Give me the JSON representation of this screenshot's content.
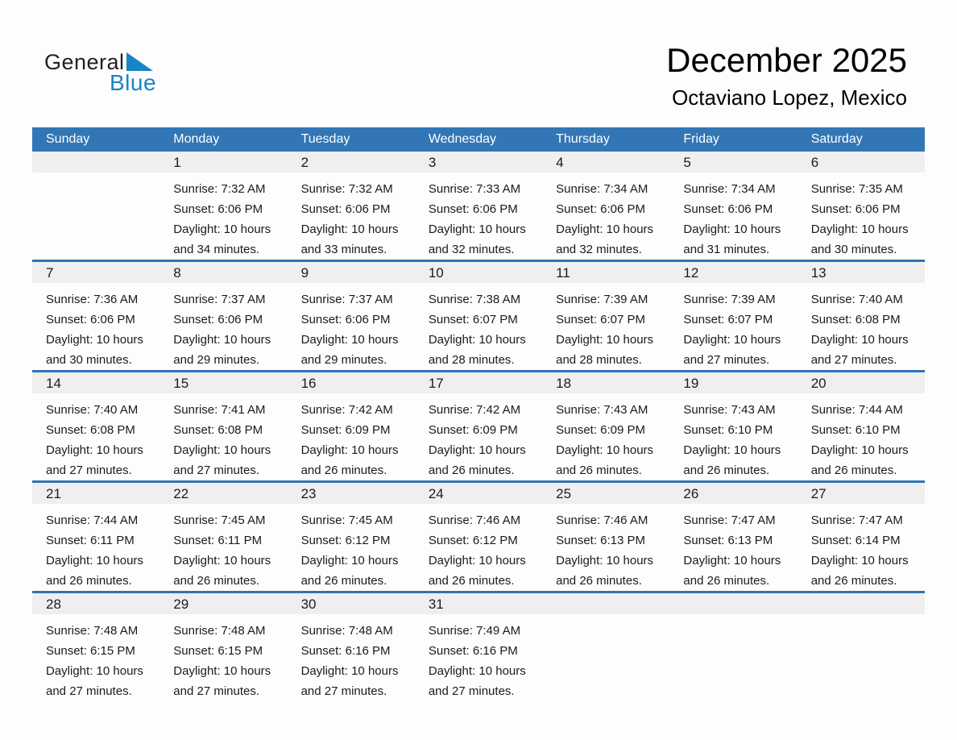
{
  "logo": {
    "text_general": "General",
    "text_blue": "Blue"
  },
  "page_header": {
    "title": "December 2025",
    "location": "Octaviano Lopez, Mexico"
  },
  "colors": {
    "header_blue": "#3276B5",
    "divider_blue": "#2E74B5",
    "strip_gray": "#EFEFEF",
    "logo_blue": "#1984C6",
    "logo_black": "#231F20",
    "text_dark": "#1B1B1B"
  },
  "calendar": {
    "weekdays": [
      "Sunday",
      "Monday",
      "Tuesday",
      "Wednesday",
      "Thursday",
      "Friday",
      "Saturday"
    ],
    "weeks": [
      [
        null,
        {
          "day": "1",
          "sunrise": "Sunrise: 7:32 AM",
          "sunset": "Sunset: 6:06 PM",
          "daylight": "Daylight: 10 hours and 34 minutes."
        },
        {
          "day": "2",
          "sunrise": "Sunrise: 7:32 AM",
          "sunset": "Sunset: 6:06 PM",
          "daylight": "Daylight: 10 hours and 33 minutes."
        },
        {
          "day": "3",
          "sunrise": "Sunrise: 7:33 AM",
          "sunset": "Sunset: 6:06 PM",
          "daylight": "Daylight: 10 hours and 32 minutes."
        },
        {
          "day": "4",
          "sunrise": "Sunrise: 7:34 AM",
          "sunset": "Sunset: 6:06 PM",
          "daylight": "Daylight: 10 hours and 32 minutes."
        },
        {
          "day": "5",
          "sunrise": "Sunrise: 7:34 AM",
          "sunset": "Sunset: 6:06 PM",
          "daylight": "Daylight: 10 hours and 31 minutes."
        },
        {
          "day": "6",
          "sunrise": "Sunrise: 7:35 AM",
          "sunset": "Sunset: 6:06 PM",
          "daylight": "Daylight: 10 hours and 30 minutes."
        }
      ],
      [
        {
          "day": "7",
          "sunrise": "Sunrise: 7:36 AM",
          "sunset": "Sunset: 6:06 PM",
          "daylight": "Daylight: 10 hours and 30 minutes."
        },
        {
          "day": "8",
          "sunrise": "Sunrise: 7:37 AM",
          "sunset": "Sunset: 6:06 PM",
          "daylight": "Daylight: 10 hours and 29 minutes."
        },
        {
          "day": "9",
          "sunrise": "Sunrise: 7:37 AM",
          "sunset": "Sunset: 6:06 PM",
          "daylight": "Daylight: 10 hours and 29 minutes."
        },
        {
          "day": "10",
          "sunrise": "Sunrise: 7:38 AM",
          "sunset": "Sunset: 6:07 PM",
          "daylight": "Daylight: 10 hours and 28 minutes."
        },
        {
          "day": "11",
          "sunrise": "Sunrise: 7:39 AM",
          "sunset": "Sunset: 6:07 PM",
          "daylight": "Daylight: 10 hours and 28 minutes."
        },
        {
          "day": "12",
          "sunrise": "Sunrise: 7:39 AM",
          "sunset": "Sunset: 6:07 PM",
          "daylight": "Daylight: 10 hours and 27 minutes."
        },
        {
          "day": "13",
          "sunrise": "Sunrise: 7:40 AM",
          "sunset": "Sunset: 6:08 PM",
          "daylight": "Daylight: 10 hours and 27 minutes."
        }
      ],
      [
        {
          "day": "14",
          "sunrise": "Sunrise: 7:40 AM",
          "sunset": "Sunset: 6:08 PM",
          "daylight": "Daylight: 10 hours and 27 minutes."
        },
        {
          "day": "15",
          "sunrise": "Sunrise: 7:41 AM",
          "sunset": "Sunset: 6:08 PM",
          "daylight": "Daylight: 10 hours and 27 minutes."
        },
        {
          "day": "16",
          "sunrise": "Sunrise: 7:42 AM",
          "sunset": "Sunset: 6:09 PM",
          "daylight": "Daylight: 10 hours and 26 minutes."
        },
        {
          "day": "17",
          "sunrise": "Sunrise: 7:42 AM",
          "sunset": "Sunset: 6:09 PM",
          "daylight": "Daylight: 10 hours and 26 minutes."
        },
        {
          "day": "18",
          "sunrise": "Sunrise: 7:43 AM",
          "sunset": "Sunset: 6:09 PM",
          "daylight": "Daylight: 10 hours and 26 minutes."
        },
        {
          "day": "19",
          "sunrise": "Sunrise: 7:43 AM",
          "sunset": "Sunset: 6:10 PM",
          "daylight": "Daylight: 10 hours and 26 minutes."
        },
        {
          "day": "20",
          "sunrise": "Sunrise: 7:44 AM",
          "sunset": "Sunset: 6:10 PM",
          "daylight": "Daylight: 10 hours and 26 minutes."
        }
      ],
      [
        {
          "day": "21",
          "sunrise": "Sunrise: 7:44 AM",
          "sunset": "Sunset: 6:11 PM",
          "daylight": "Daylight: 10 hours and 26 minutes."
        },
        {
          "day": "22",
          "sunrise": "Sunrise: 7:45 AM",
          "sunset": "Sunset: 6:11 PM",
          "daylight": "Daylight: 10 hours and 26 minutes."
        },
        {
          "day": "23",
          "sunrise": "Sunrise: 7:45 AM",
          "sunset": "Sunset: 6:12 PM",
          "daylight": "Daylight: 10 hours and 26 minutes."
        },
        {
          "day": "24",
          "sunrise": "Sunrise: 7:46 AM",
          "sunset": "Sunset: 6:12 PM",
          "daylight": "Daylight: 10 hours and 26 minutes."
        },
        {
          "day": "25",
          "sunrise": "Sunrise: 7:46 AM",
          "sunset": "Sunset: 6:13 PM",
          "daylight": "Daylight: 10 hours and 26 minutes."
        },
        {
          "day": "26",
          "sunrise": "Sunrise: 7:47 AM",
          "sunset": "Sunset: 6:13 PM",
          "daylight": "Daylight: 10 hours and 26 minutes."
        },
        {
          "day": "27",
          "sunrise": "Sunrise: 7:47 AM",
          "sunset": "Sunset: 6:14 PM",
          "daylight": "Daylight: 10 hours and 26 minutes."
        }
      ],
      [
        {
          "day": "28",
          "sunrise": "Sunrise: 7:48 AM",
          "sunset": "Sunset: 6:15 PM",
          "daylight": "Daylight: 10 hours and 27 minutes."
        },
        {
          "day": "29",
          "sunrise": "Sunrise: 7:48 AM",
          "sunset": "Sunset: 6:15 PM",
          "daylight": "Daylight: 10 hours and 27 minutes."
        },
        {
          "day": "30",
          "sunrise": "Sunrise: 7:48 AM",
          "sunset": "Sunset: 6:16 PM",
          "daylight": "Daylight: 10 hours and 27 minutes."
        },
        {
          "day": "31",
          "sunrise": "Sunrise: 7:49 AM",
          "sunset": "Sunset: 6:16 PM",
          "daylight": "Daylight: 10 hours and 27 minutes."
        },
        null,
        null,
        null
      ]
    ]
  }
}
